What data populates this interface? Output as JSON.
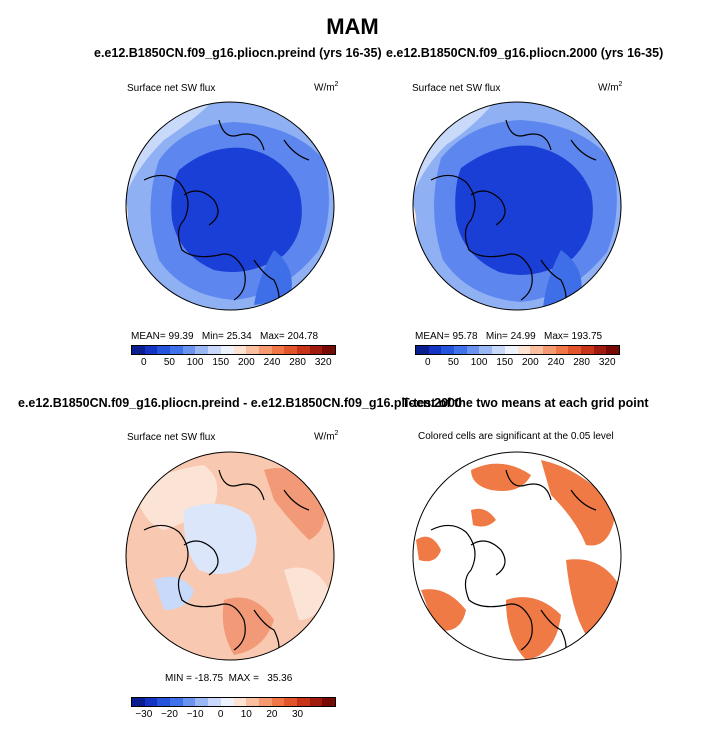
{
  "title": "MAM",
  "panels": {
    "a": {
      "case": "e.e12.B1850CN.f09_g16.pliocn.preind (yrs 16-35)",
      "variable": "Surface net SW flux",
      "units": "W/m",
      "units_sup": "2",
      "stats": {
        "mean_label": "MEAN=",
        "mean": "99.39",
        "min_label": "Min=",
        "min": "25.34",
        "max_label": "Max=",
        "max": "204.78"
      }
    },
    "b": {
      "case": "e.e12.B1850CN.f09_g16.pliocn.2000 (yrs 16-35)",
      "variable": "Surface net SW flux",
      "units": "W/m",
      "units_sup": "2",
      "stats": {
        "mean_label": "MEAN=",
        "mean": "95.78",
        "min_label": "Min=",
        "min": "24.99",
        "max_label": "Max=",
        "max": "193.75"
      }
    },
    "c": {
      "case": "e.e12.B1850CN.f09_g16.pliocn.preind - e.e12.B1850CN.f09_g16.pliocn.2000",
      "variable": "Surface net SW flux",
      "units": "W/m",
      "units_sup": "2",
      "stats_line": "MIN = -18.75  MAX =   35.36"
    },
    "d": {
      "title": "T-test of the two means at each grid point",
      "subtitle": "Colored cells are significant at the 0.05 level"
    }
  },
  "colorbars": {
    "abs": {
      "colors": [
        "#0a1f8f",
        "#1434c4",
        "#2554dc",
        "#3f72ea",
        "#6a93f0",
        "#9ab7f5",
        "#c7d8fa",
        "#eef2fd",
        "#fde3d3",
        "#f9bf9f",
        "#f59a70",
        "#f07648",
        "#e2542c",
        "#c7341a",
        "#a01a0e",
        "#780a05"
      ],
      "ticks": [
        "0",
        "50",
        "100",
        "150",
        "200",
        "240",
        "280",
        "320"
      ]
    },
    "diff": {
      "colors": [
        "#0a1f8f",
        "#1434c4",
        "#2554dc",
        "#3f72ea",
        "#6a93f0",
        "#9ab7f5",
        "#c7d8fa",
        "#eef2fd",
        "#fde3d3",
        "#f9bf9f",
        "#f59a70",
        "#f07648",
        "#e2542c",
        "#c7341a",
        "#a01a0e",
        "#780a05"
      ],
      "ticks": [
        "−30",
        "−20",
        "−10",
        "0",
        "10",
        "20",
        "30"
      ]
    }
  },
  "colors": {
    "deep_blue": "#1a3fd6",
    "mid_blue": "#3f6fe8",
    "light_blue": "#8fb0f2",
    "pale_blue": "#c8d9fa",
    "pale_peach": "#fbe4d6",
    "light_salmon": "#f7bfa2",
    "salmon": "#f29a78",
    "significant_orange": "#ef7a45"
  }
}
